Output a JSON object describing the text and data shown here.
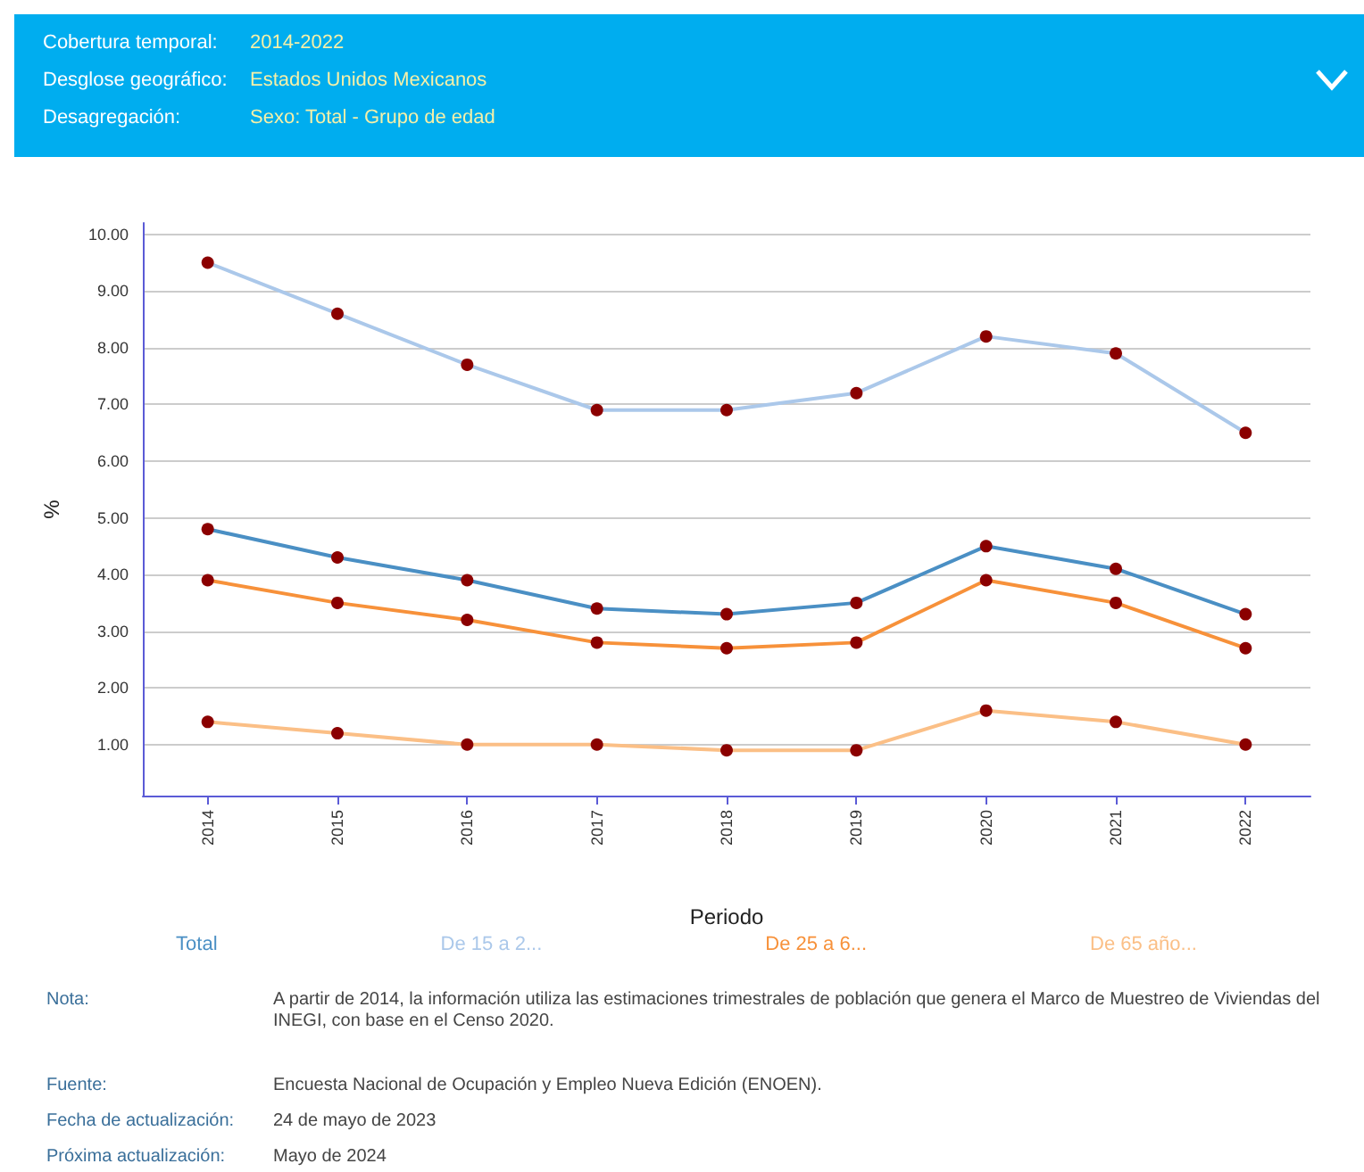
{
  "chart_data": {
    "type": "line",
    "xlabel": "Periodo",
    "ylabel": "%",
    "annotations": [
      "Cobertura temporal:",
      "2014-2022",
      "Desglose geográfico:",
      "Estados Unidos Mexicanos",
      "Desagregación:",
      "Sexo: Total - Grupo de edad",
      "Nota:",
      "A partir de 2014, la información utiliza las estimaciones trimestrales de población que genera el Marco de Muestreo de Viviendas del INEGI, con base en el Censo 2020.",
      "Fuente:",
      "Encuesta Nacional de Ocupación y Empleo Nueva Edición (ENOEN).",
      "Fecha de actualización:",
      "24 de mayo de 2023",
      "Próxima actualización:",
      "Mayo de 2024"
    ],
    "categories": [
      "2014",
      "2015",
      "2016",
      "2017",
      "2018",
      "2019",
      "2020",
      "2021",
      "2022"
    ],
    "series": [
      {
        "name": "Total",
        "color": "#4a8fc4",
        "values": [
          4.8,
          4.3,
          3.9,
          3.4,
          3.3,
          3.5,
          4.5,
          4.1,
          3.3
        ]
      },
      {
        "name": "De 15 a 2...",
        "color": "#abc8ea",
        "values": [
          9.5,
          8.6,
          7.7,
          6.9,
          6.9,
          7.2,
          8.2,
          7.9,
          6.5
        ]
      },
      {
        "name": "De 25 a 6...",
        "color": "#f7913a",
        "values": [
          3.9,
          3.5,
          3.2,
          2.8,
          2.7,
          2.8,
          3.9,
          3.5,
          2.7
        ]
      },
      {
        "name": "De 65 año...",
        "color": "#fbbf86",
        "values": [
          1.4,
          1.2,
          1.0,
          1.0,
          0.9,
          0.9,
          1.6,
          1.4,
          1.0
        ]
      }
    ],
    "ylim": [
      0.1,
      10.2
    ],
    "yticks": [
      {
        "value": 1,
        "label": "1.00"
      },
      {
        "value": 2,
        "label": "2.00"
      },
      {
        "value": 3,
        "label": "3.00"
      },
      {
        "value": 4,
        "label": "4.00"
      },
      {
        "value": 5,
        "label": "5.00"
      },
      {
        "value": 6,
        "label": "6.00"
      },
      {
        "value": 7,
        "label": "7.00"
      },
      {
        "value": 8,
        "label": "8.00"
      },
      {
        "value": 9,
        "label": "9.00"
      },
      {
        "value": 10,
        "label": "10.00"
      }
    ],
    "grid": "y",
    "legend": "bottom",
    "marker": "circle",
    "line_style": "solid"
  }
}
